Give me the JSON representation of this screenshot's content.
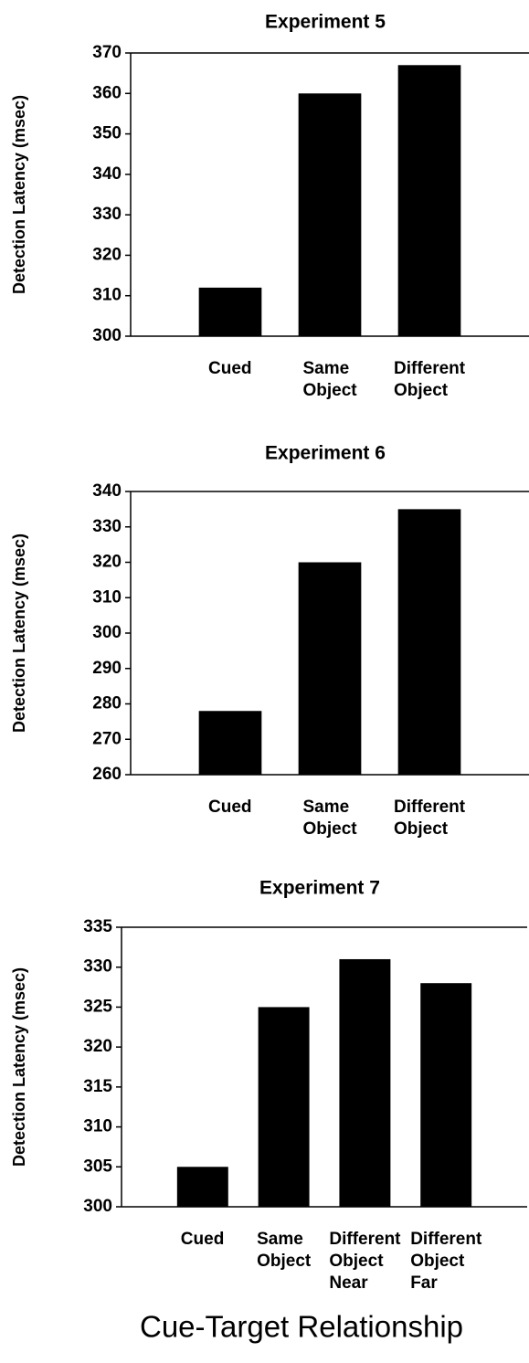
{
  "chart_data": [
    {
      "type": "bar",
      "title": "Experiment 5",
      "y_label": "Detection Latency (msec)",
      "categories": [
        "Cued",
        "Same Object",
        "Different Object"
      ],
      "values": [
        312,
        360,
        367
      ],
      "color": "#000000",
      "ylim": [
        300,
        370
      ],
      "yticks": [
        300,
        310,
        320,
        330,
        340,
        350,
        360,
        370
      ]
    },
    {
      "type": "bar",
      "title": "Experiment 6",
      "y_label": "Detection Latency (msec)",
      "categories": [
        "Cued",
        "Same Object",
        "Different Object"
      ],
      "values": [
        278,
        320,
        335
      ],
      "color": "#000000",
      "ylim": [
        260,
        340
      ],
      "yticks": [
        260,
        270,
        280,
        290,
        300,
        310,
        320,
        330,
        340
      ]
    },
    {
      "type": "bar",
      "title": "Experiment 7",
      "y_label": "Detection Latency (msec)",
      "categories": [
        "Cued",
        "Same Object",
        "Different Object Near",
        "Different Object Far"
      ],
      "values": [
        305,
        325,
        331,
        328
      ],
      "color": "#000000",
      "ylim": [
        300,
        335
      ],
      "yticks": [
        300,
        305,
        310,
        315,
        320,
        325,
        330,
        335
      ]
    }
  ],
  "x_label": "Cue-Target Relationship"
}
